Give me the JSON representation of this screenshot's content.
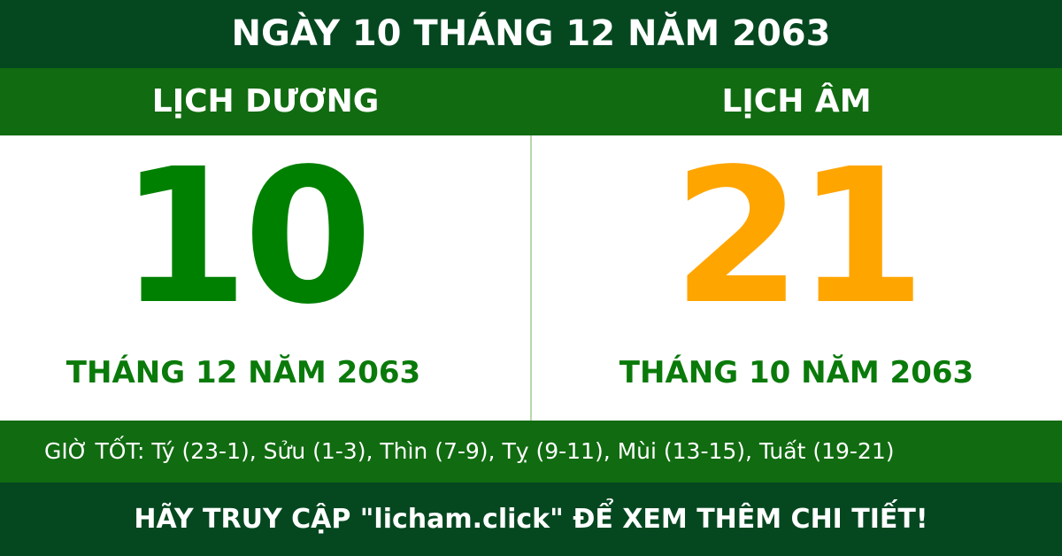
{
  "title": "NGÀY 10 THÁNG 12 NĂM 2063",
  "solar": {
    "heading": "LỊCH DƯƠNG",
    "day": "10",
    "month_year": "THÁNG 12 NĂM 2063"
  },
  "lunar": {
    "heading": "LỊCH ÂM",
    "day": "21",
    "month_year": "THÁNG 10 NĂM 2063"
  },
  "good_hours": "GIỜ TỐT: Tý (23-1), Sửu (1-3), Thìn (7-9), Tỵ (9-11), Mùi (13-15), Tuất (19-21)",
  "footer": "HÃY TRUY CẬP \"licham.click\" ĐỂ XEM THÊM CHI TIẾT!",
  "colors": {
    "dark_green": "#054820",
    "band_green": "#116b11",
    "solar_day": "#008000",
    "lunar_day": "#ffa500"
  }
}
